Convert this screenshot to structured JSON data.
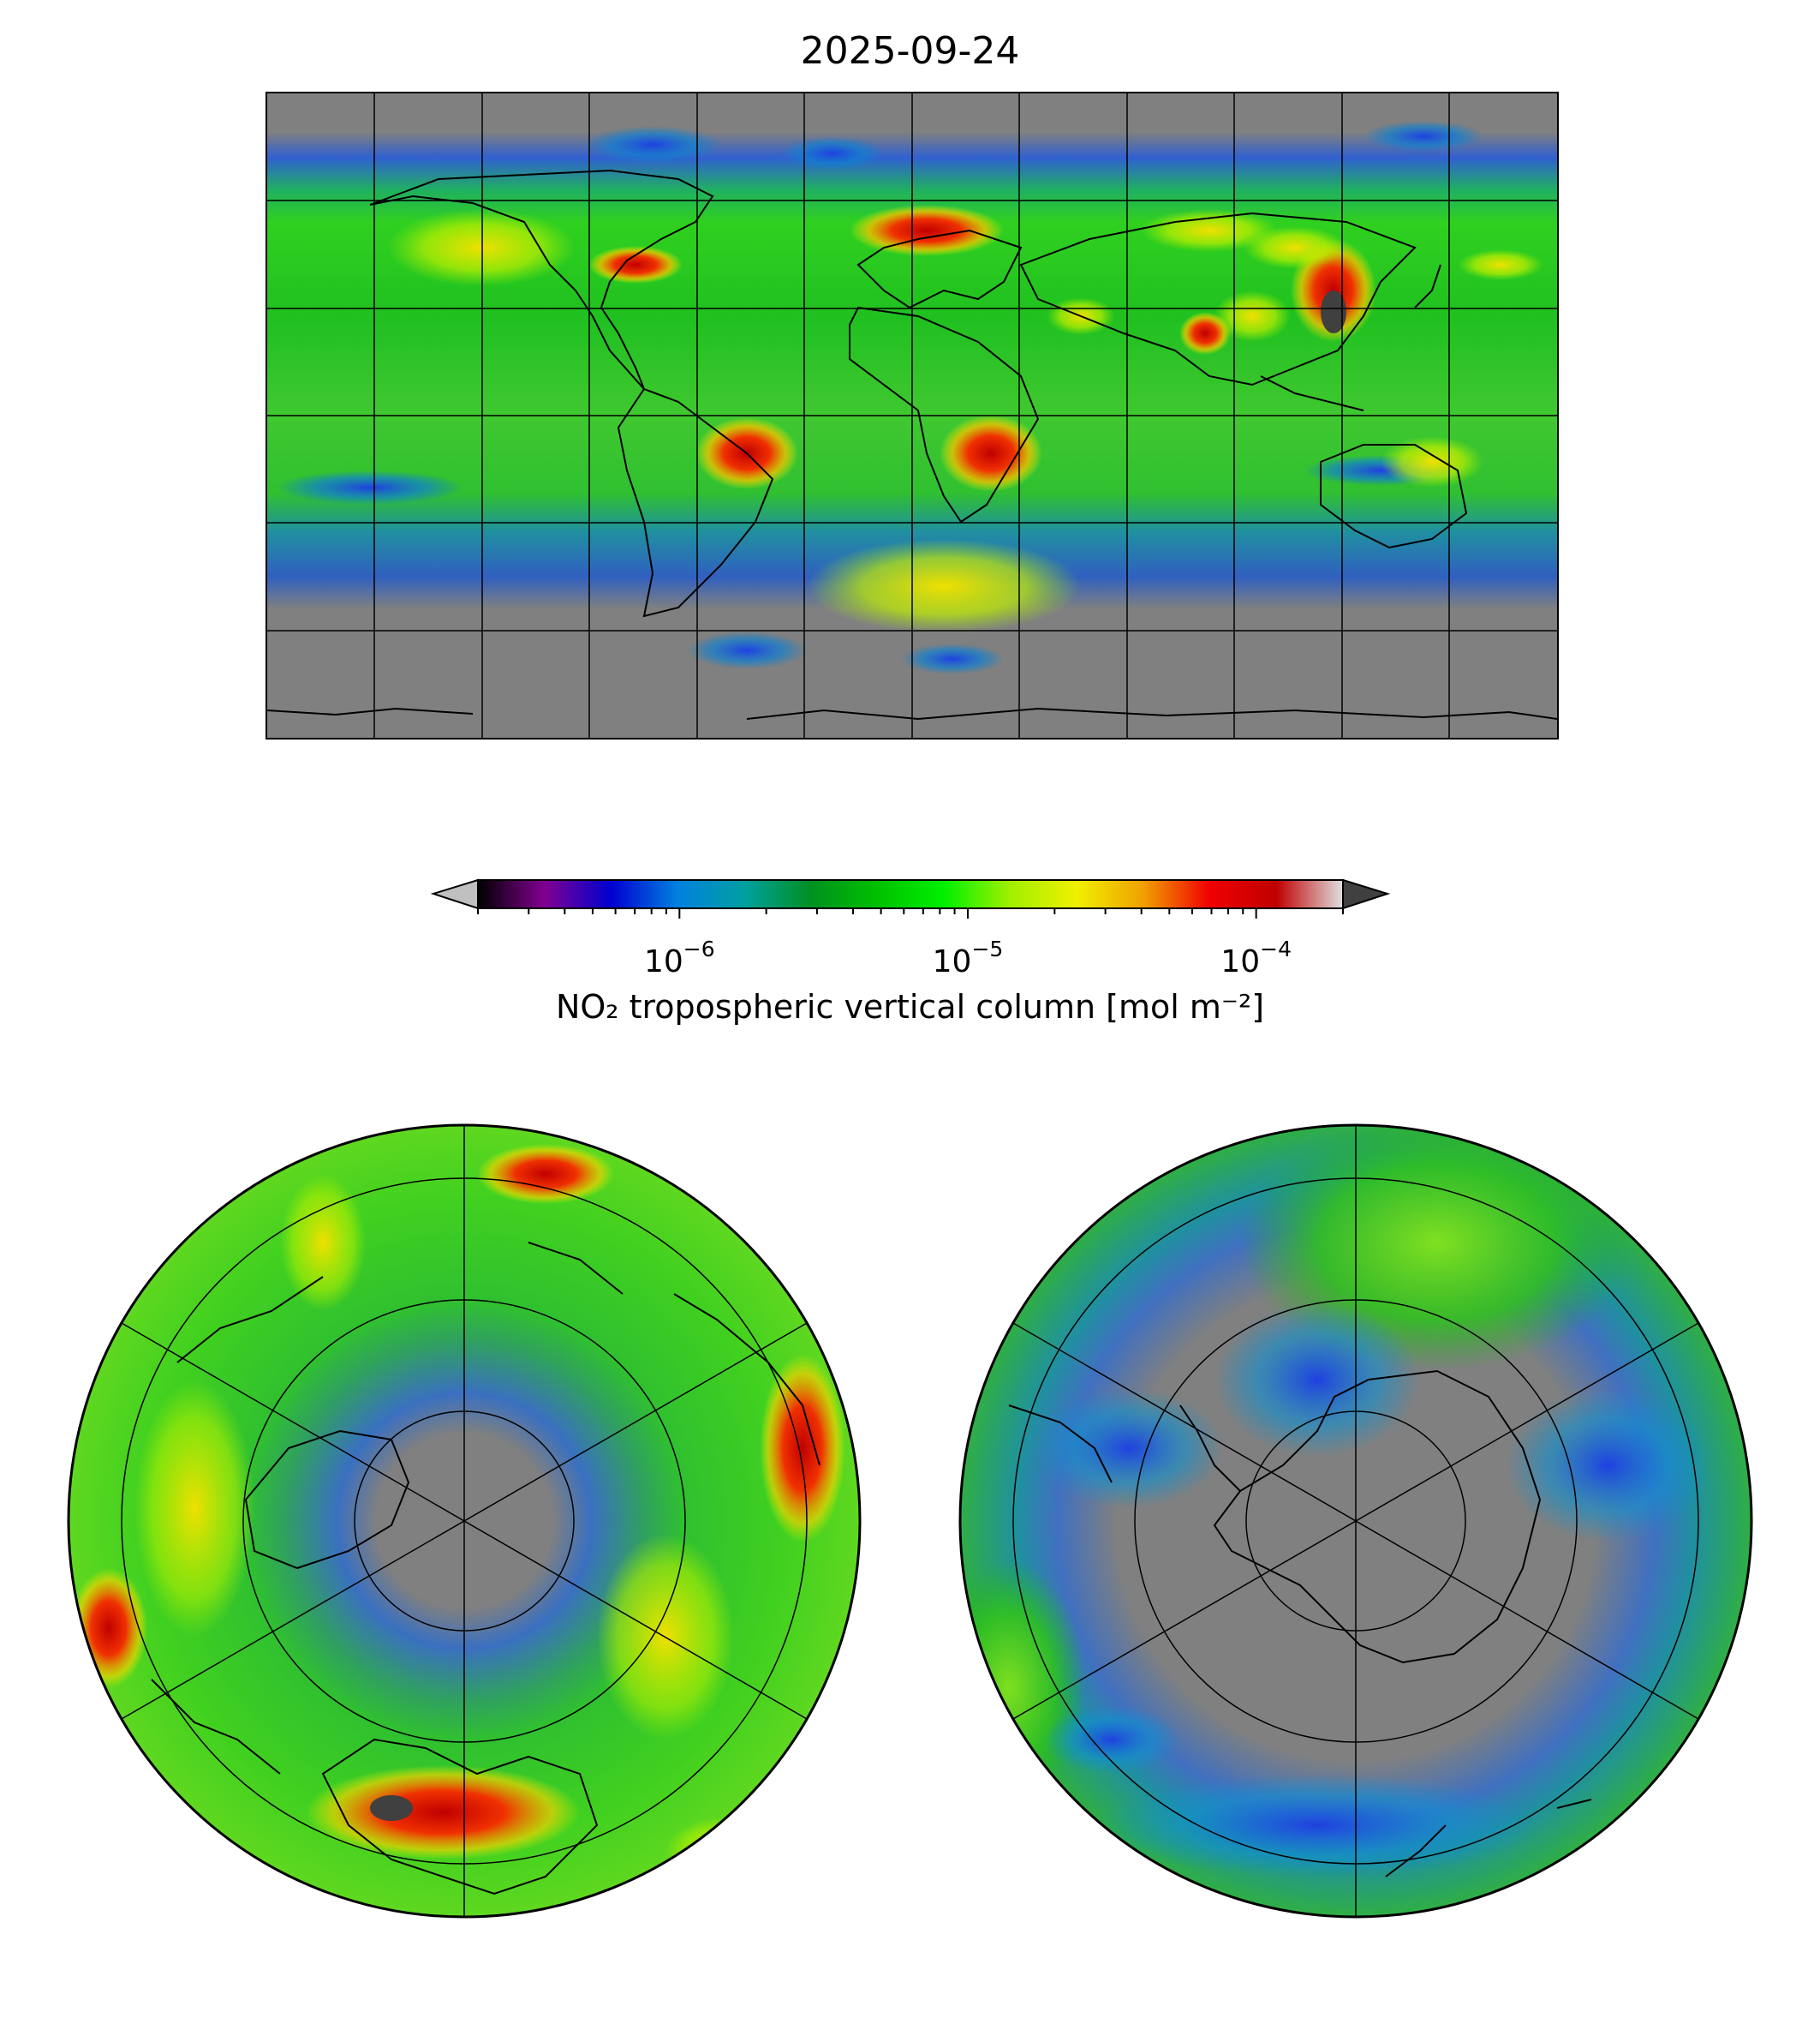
{
  "figure": {
    "title": "2025-09-24"
  },
  "colorbar": {
    "label": "NO₂ tropospheric vertical column [mol m⁻²]",
    "scale": "log",
    "vmin": 2e-07,
    "vmax": 0.0002,
    "extend": "both",
    "under_color": "#c0c0c0",
    "over_color": "#404040",
    "ticks": [
      {
        "base": "10",
        "exp": "−6",
        "value": 1e-06
      },
      {
        "base": "10",
        "exp": "−5",
        "value": 1e-05
      },
      {
        "base": "10",
        "exp": "−4",
        "value": 0.0001
      }
    ],
    "colormap": [
      "#000000",
      "#800090",
      "#0000d0",
      "#0080e0",
      "#00a0a0",
      "#009020",
      "#00c000",
      "#00f000",
      "#a0f000",
      "#f0f000",
      "#f0a000",
      "#f00000",
      "#c00000",
      "#e0e0e0"
    ]
  },
  "maps": {
    "global": {
      "projection": "PlateCarree",
      "name": "global map"
    },
    "north_polar": {
      "projection": "North Polar Stereographic",
      "name": "arctic map"
    },
    "south_polar": {
      "projection": "South Polar Stereographic",
      "name": "antarctic map"
    }
  },
  "colors": {
    "land_nodata": "#808080",
    "coast": "#000000",
    "grid": "#000000"
  }
}
